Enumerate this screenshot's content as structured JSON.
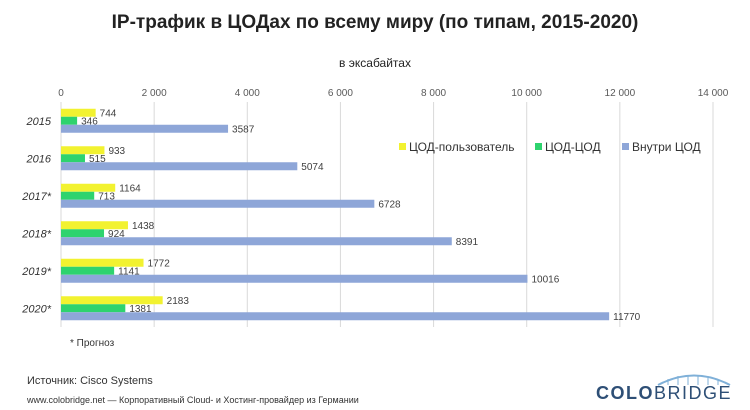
{
  "title": "IP-трафик в ЦОДах по всему миру (по типам, 2015-2020)",
  "subtitle": "в эксабайтах",
  "note": "* Прогноз",
  "source": "Источник:  Cisco Systems",
  "footer": "www.colobridge.net — Корпоративный Cloud- и Хостинг-провайдер из Германии",
  "logo": {
    "part1": "COLO",
    "part2": "BRIDGE"
  },
  "colors": {
    "series1": "#f2f230",
    "series2": "#2ed36e",
    "series3": "#8ea6d8",
    "grid": "#d9d9d9"
  },
  "chart_data": {
    "type": "bar",
    "orientation": "horizontal",
    "title": "IP-трафик в ЦОДах по всему миру (по типам, 2015-2020)",
    "subtitle": "в эксабайтах",
    "categories": [
      "2015",
      "2016",
      "2017*",
      "2018*",
      "2019*",
      "2020*"
    ],
    "series": [
      {
        "name": "ЦОД-пользователь",
        "values": [
          744,
          933,
          1164,
          1438,
          1772,
          2183
        ]
      },
      {
        "name": "ЦОД-ЦОД",
        "values": [
          346,
          515,
          713,
          924,
          1141,
          1381
        ]
      },
      {
        "name": "Внутри ЦОД",
        "values": [
          3587,
          5074,
          6728,
          8391,
          10016,
          11770
        ]
      }
    ],
    "xlim": [
      0,
      14000
    ],
    "x_ticks": [
      "0",
      "2 000",
      "4 000",
      "6 000",
      "8 000",
      "10 000",
      "12 000",
      "14 000"
    ],
    "x_tick_position": "top",
    "grid": true,
    "legend_position": "right"
  }
}
